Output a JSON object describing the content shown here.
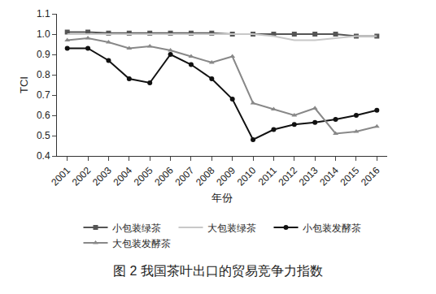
{
  "chart_data": {
    "type": "line",
    "title": "图 2 我国茶叶出口的贸易竞争力指数",
    "x_label": "年份",
    "y_label": "TCI",
    "categories": [
      "2001",
      "2002",
      "2003",
      "2004",
      "2005",
      "2006",
      "2007",
      "2008",
      "2009",
      "2010",
      "2011",
      "2012",
      "2013",
      "2014",
      "2015",
      "2016"
    ],
    "series": [
      {
        "name": "小包装绿茶",
        "color": "#555555",
        "marker": "square",
        "line_style": "solid",
        "values": [
          1.01,
          1.01,
          1.005,
          1.005,
          1.005,
          1.005,
          1.005,
          1.005,
          1.0,
          1.0,
          1.0,
          1.0,
          1.0,
          1.0,
          0.99,
          0.99
        ]
      },
      {
        "name": "大包装绿茶",
        "color": "#c8c8c8",
        "marker": "none",
        "line_style": "solid",
        "values": [
          1.0,
          1.0,
          1.0,
          1.0,
          1.0,
          1.0,
          1.0,
          1.0,
          1.0,
          1.0,
          0.99,
          0.97,
          0.97,
          0.98,
          0.99,
          0.99
        ]
      },
      {
        "name": "小包装发酵茶",
        "color": "#111111",
        "marker": "circle",
        "line_style": "solid",
        "values": [
          0.93,
          0.93,
          0.87,
          0.78,
          0.76,
          0.9,
          0.85,
          0.78,
          0.68,
          0.48,
          0.53,
          0.555,
          0.565,
          0.58,
          0.6,
          0.625
        ]
      },
      {
        "name": "大包装发酵茶",
        "color": "#888888",
        "marker": "triangle-up",
        "line_style": "solid",
        "values": [
          0.97,
          0.98,
          0.96,
          0.93,
          0.94,
          0.92,
          0.89,
          0.86,
          0.89,
          0.66,
          0.63,
          0.6,
          0.635,
          0.51,
          0.52,
          0.545
        ]
      }
    ],
    "ylim": [
      0.4,
      1.1
    ],
    "yticks": [
      0.4,
      0.5,
      0.6,
      0.7,
      0.8,
      0.9,
      {
        "value": 1.0,
        "label": "1.0"
      },
      1.1
    ],
    "grid": false,
    "legend": "bottom"
  }
}
